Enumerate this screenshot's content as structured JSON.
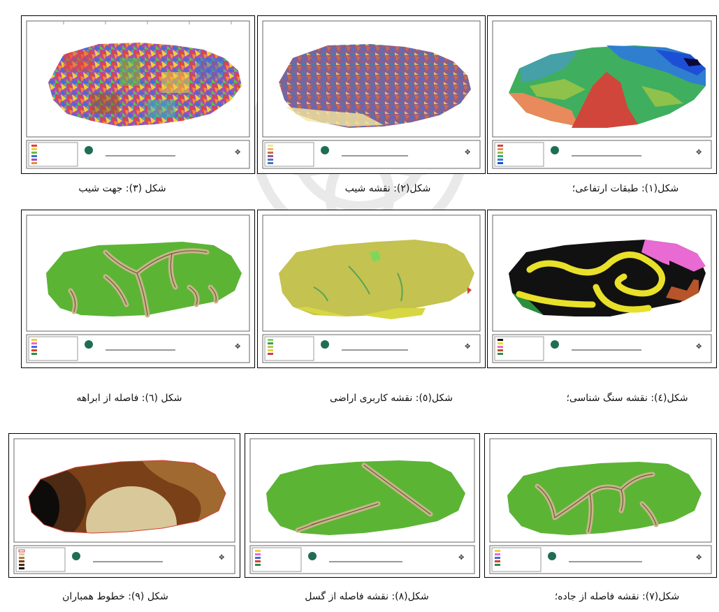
{
  "colors": {
    "elevation": [
      "#d0463b",
      "#e88a5b",
      "#8fc24a",
      "#3fae5f",
      "#46a0a8",
      "#2f7ed0",
      "#1c4fd6"
    ],
    "slope": [
      "#f3e7a0",
      "#e6b874",
      "#c76a4f",
      "#8b5e8e",
      "#5a6dbd",
      "#3f7fb2"
    ],
    "aspect": [
      "#e2433a",
      "#f0d03a",
      "#5ec04a",
      "#3f6fd2",
      "#a44fb3",
      "#f08a3c",
      "#3ab6b4",
      "#8c5a32"
    ],
    "lithology": [
      "#111111",
      "#e9e02a",
      "#e96ad2",
      "#b8542a",
      "#2c8f3f"
    ],
    "landuse": [
      "#c4c250",
      "#d7d743",
      "#7fd65c",
      "#3f9c5a",
      "#d34035"
    ],
    "distance": [
      "#5cb435",
      "#c9b48a"
    ],
    "isohyet": [
      "#0e0b0b",
      "#4c2a14",
      "#7a4018",
      "#b07a3b",
      "#d8c89a"
    ]
  },
  "maps": [
    {
      "id": "fig1",
      "caption": "شکل(۱): طبقات ارتفاعی؛",
      "icon": "elevation-map"
    },
    {
      "id": "fig2",
      "caption": "شکل(۲): نقشه شیب",
      "icon": "slope-map"
    },
    {
      "id": "fig3",
      "caption": "شکل (۳): جهت شیب",
      "icon": "aspect-map"
    },
    {
      "id": "fig4",
      "caption": "شکل(٤): نقشه سنگ شناسی؛",
      "icon": "lithology-map"
    },
    {
      "id": "fig5",
      "caption": "شکل(٥): نقشه کاربری اراضی",
      "icon": "landuse-map"
    },
    {
      "id": "fig6",
      "caption": "شکل (٦): فاصله از ابراهه",
      "icon": "stream-distance-map"
    },
    {
      "id": "fig7",
      "caption": "شکل(۷): نقشه فاصله از جاده؛",
      "icon": "road-distance-map"
    },
    {
      "id": "fig8",
      "caption": "شکل(۸): نقشه فاصله از گسل",
      "icon": "fault-distance-map"
    },
    {
      "id": "fig9",
      "caption": "شکل (۹): خطوط همباران",
      "icon": "isohyet-map"
    }
  ]
}
